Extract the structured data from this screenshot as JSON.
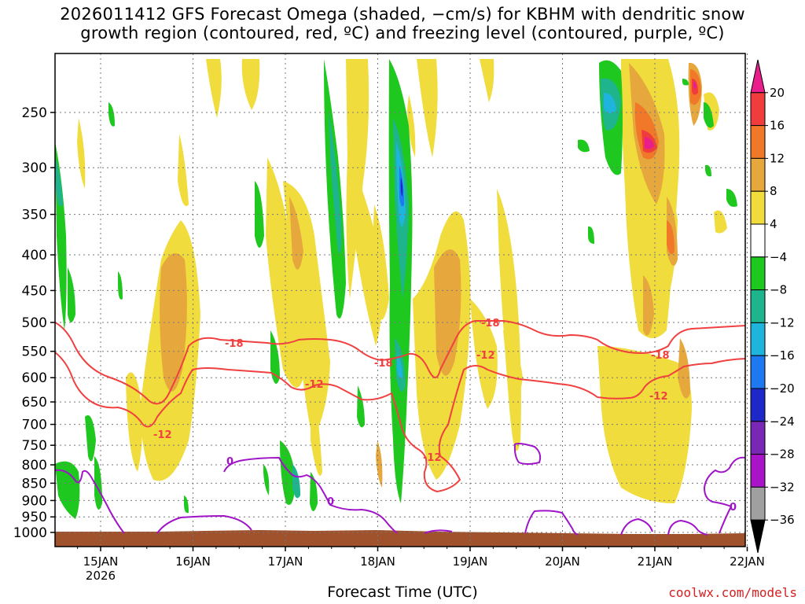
{
  "chart_data": {
    "type": "heatmap",
    "title_line1": "2026011412 GFS Forecast Omega (shaded, −cm/s) for KBHM with dendritic snow",
    "title_line2": "growth region (contoured, red, ºC) and freezing level (contoured, purple, ºC)",
    "xlabel": "Forecast Time (UTC)",
    "credit": "coolwx.com/models",
    "x_ticks": [
      "15JAN",
      "16JAN",
      "17JAN",
      "18JAN",
      "19JAN",
      "20JAN",
      "21JAN",
      "22JAN"
    ],
    "x_year": "2026",
    "y_ticks": [
      "250",
      "300",
      "350",
      "400",
      "450",
      "500",
      "550",
      "600",
      "650",
      "700",
      "750",
      "800",
      "850",
      "900",
      "950",
      "1000"
    ],
    "y_ticks_values": [
      250,
      300,
      350,
      400,
      450,
      500,
      550,
      600,
      650,
      700,
      750,
      800,
      850,
      900,
      950,
      1000
    ],
    "colorbar": {
      "labels": [
        "20",
        "16",
        "12",
        "8",
        "4",
        "−4",
        "−8",
        "−12",
        "−16",
        "−20",
        "−24",
        "−28",
        "−32",
        "−36"
      ],
      "colors": [
        "#e81e8c",
        "#f03c3c",
        "#f07828",
        "#e6a83c",
        "#f0dc3c",
        "#ffffff",
        "#1ec81e",
        "#1eb48c",
        "#1eb4dc",
        "#1e78f0",
        "#1e28c8",
        "#7828b4",
        "#aa14c8",
        "#a0a0a0",
        "#000000"
      ]
    },
    "contours": [
      {
        "label": "-18",
        "color": "#f04040",
        "level_hpa": 545
      },
      {
        "label": "-12",
        "color": "#f04040",
        "level_hpa": 620
      },
      {
        "label": "0",
        "color": "#a014c8",
        "level_hpa": 850
      }
    ],
    "contour_labels": [
      "-18",
      "-18",
      "-18",
      "-18",
      "-12",
      "-12",
      "-12",
      "-12",
      "-12",
      "0",
      "0",
      "0"
    ]
  }
}
